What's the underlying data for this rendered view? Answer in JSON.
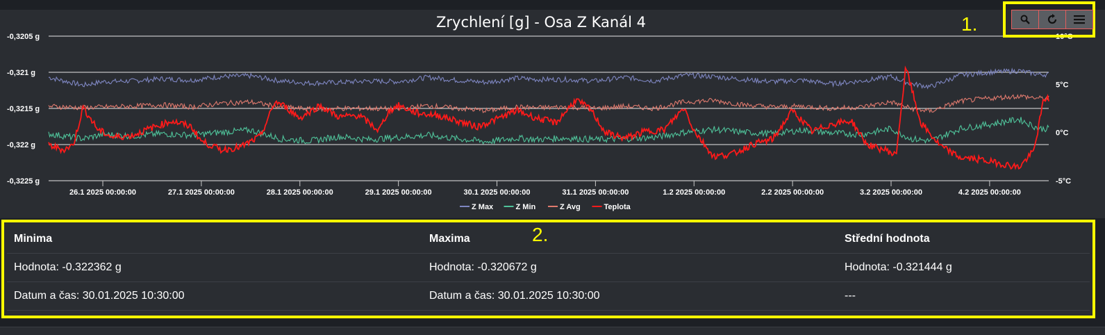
{
  "chart_data": {
    "type": "line",
    "title": "Zrychlení [g] - Osa Z Kanál 4",
    "y_left": {
      "min": -0.3225,
      "max": -0.3205,
      "ticks": [
        "-0,3205 g",
        "-0,321 g",
        "-0,3215 g",
        "-0,322 g",
        "-0,3225 g"
      ]
    },
    "y_right": {
      "min": -5,
      "max": 10,
      "ticks": [
        "10°C",
        "5°C",
        "0°C",
        "-5°C"
      ]
    },
    "x_ticks": [
      "26.1 2025 00:00:00",
      "27.1 2025 00:00:00",
      "28.1 2025 00:00:00",
      "29.1 2025 00:00:00",
      "30.1 2025 00:00:00",
      "31.1 2025 00:00:00",
      "1.2 2025 00:00:00",
      "2.2 2025 00:00:00",
      "3.2 2025 00:00:00",
      "4.2 2025 00:00:00"
    ],
    "x_start_day": 25.45,
    "x_end_day": 35.6,
    "grid": true,
    "legend_position": "bottom",
    "series": [
      {
        "name": "Z Max",
        "color": "#7e86c1",
        "axis": "left",
        "x": [
          25.45,
          25.8,
          26.0,
          26.3,
          26.6,
          26.9,
          27.2,
          27.5,
          27.8,
          28.1,
          28.4,
          28.7,
          29.0,
          29.3,
          29.6,
          29.9,
          30.2,
          30.4,
          30.7,
          31.0,
          31.3,
          31.6,
          31.9,
          32.2,
          32.5,
          32.8,
          33.1,
          33.4,
          33.7,
          34.0,
          34.2,
          34.4,
          34.7,
          35.0,
          35.3,
          35.5
        ],
        "values": [
          -0.32107,
          -0.32118,
          -0.32113,
          -0.32112,
          -0.32109,
          -0.32111,
          -0.32106,
          -0.32105,
          -0.32112,
          -0.32115,
          -0.32114,
          -0.32112,
          -0.32113,
          -0.32107,
          -0.32111,
          -0.32114,
          -0.32108,
          -0.3211,
          -0.3211,
          -0.32112,
          -0.32107,
          -0.32112,
          -0.32104,
          -0.32106,
          -0.3211,
          -0.32113,
          -0.32111,
          -0.32116,
          -0.32112,
          -0.32106,
          -0.32116,
          -0.3212,
          -0.32104,
          -0.321,
          -0.32098,
          -0.32103
        ]
      },
      {
        "name": "Z Min",
        "color": "#4fc39a",
        "axis": "left",
        "x": [
          25.45,
          25.8,
          26.0,
          26.3,
          26.6,
          26.9,
          27.2,
          27.5,
          27.8,
          28.1,
          28.4,
          28.7,
          29.0,
          29.3,
          29.6,
          29.9,
          30.2,
          30.4,
          30.7,
          31.0,
          31.3,
          31.6,
          31.9,
          32.2,
          32.5,
          32.8,
          33.1,
          33.4,
          33.7,
          34.0,
          34.2,
          34.4,
          34.7,
          35.0,
          35.3,
          35.5
        ],
        "values": [
          -0.32185,
          -0.32192,
          -0.32186,
          -0.32188,
          -0.32185,
          -0.32187,
          -0.32183,
          -0.3218,
          -0.32192,
          -0.32195,
          -0.32189,
          -0.32193,
          -0.3219,
          -0.32187,
          -0.32192,
          -0.32196,
          -0.32191,
          -0.32193,
          -0.32191,
          -0.32193,
          -0.32192,
          -0.3219,
          -0.32183,
          -0.32179,
          -0.32183,
          -0.32185,
          -0.3218,
          -0.32184,
          -0.32186,
          -0.32178,
          -0.32192,
          -0.32195,
          -0.32178,
          -0.32172,
          -0.32165,
          -0.32178
        ]
      },
      {
        "name": "Z Avg",
        "color": "#e07a6e",
        "axis": "left",
        "x": [
          25.45,
          25.8,
          26.0,
          26.3,
          26.6,
          26.9,
          27.2,
          27.5,
          27.8,
          28.1,
          28.4,
          28.7,
          29.0,
          29.3,
          29.6,
          29.9,
          30.2,
          30.4,
          30.7,
          31.0,
          31.3,
          31.6,
          31.9,
          32.2,
          32.5,
          32.8,
          33.1,
          33.4,
          33.7,
          34.0,
          34.2,
          34.4,
          34.7,
          35.0,
          35.3,
          35.5
        ],
        "values": [
          -0.32147,
          -0.32149,
          -0.32148,
          -0.32147,
          -0.32145,
          -0.32148,
          -0.32143,
          -0.32141,
          -0.32148,
          -0.32151,
          -0.3215,
          -0.3215,
          -0.32151,
          -0.32146,
          -0.3215,
          -0.32153,
          -0.32148,
          -0.32149,
          -0.32148,
          -0.3215,
          -0.32147,
          -0.3215,
          -0.32141,
          -0.32139,
          -0.32145,
          -0.32148,
          -0.32147,
          -0.3215,
          -0.32148,
          -0.32141,
          -0.3215,
          -0.32154,
          -0.3214,
          -0.32136,
          -0.32133,
          -0.32136
        ]
      },
      {
        "name": "Teplota",
        "color": "#ff1a1a",
        "axis": "right",
        "x": [
          25.45,
          25.6,
          25.7,
          25.8,
          25.95,
          26.1,
          26.3,
          26.5,
          26.7,
          26.9,
          27.0,
          27.2,
          27.4,
          27.6,
          27.75,
          27.85,
          28.0,
          28.2,
          28.4,
          28.6,
          28.8,
          28.9,
          29.0,
          29.2,
          29.4,
          29.6,
          29.8,
          30.0,
          30.2,
          30.4,
          30.6,
          30.8,
          30.95,
          31.1,
          31.3,
          31.5,
          31.7,
          31.9,
          32.0,
          32.2,
          32.4,
          32.6,
          32.8,
          33.0,
          33.2,
          33.4,
          33.6,
          33.75,
          33.85,
          33.95,
          34.05,
          34.15,
          34.3,
          34.5,
          34.7,
          34.9,
          35.1,
          35.3,
          35.45,
          35.55
        ],
        "values": [
          -1.3,
          -1.8,
          -1.3,
          2.6,
          0.3,
          -0.5,
          -0.3,
          0.5,
          1.2,
          0.6,
          -0.9,
          -1.8,
          -1.5,
          -0.4,
          3.2,
          2.7,
          1.5,
          2.8,
          1.6,
          1.8,
          0.2,
          2.2,
          2.8,
          2.0,
          1.8,
          1.2,
          0.6,
          1.4,
          2.3,
          1.5,
          1.0,
          3.4,
          2.4,
          0.0,
          -0.6,
          0.1,
          0.3,
          2.6,
          0.2,
          -2.5,
          -2.2,
          -1.2,
          -0.7,
          2.3,
          0.1,
          0.9,
          1.2,
          -1.2,
          -1.6,
          -1.8,
          -2.4,
          6.8,
          1.0,
          -1.4,
          -2.6,
          -2.8,
          -3.2,
          -3.6,
          -1.9,
          3.5
        ]
      }
    ]
  },
  "toolbar": {
    "annotation": "1.",
    "zoom_icon": "zoom-icon",
    "reset_icon": "reset-icon",
    "menu_icon": "menu-icon"
  },
  "stats": {
    "annotation": "2.",
    "headers": [
      "Minima",
      "Maxima",
      "Střední hodnota"
    ],
    "rows": [
      [
        "Hodnota: -0.322362 g",
        "Hodnota: -0.320672 g",
        "Hodnota: -0.321444 g"
      ],
      [
        "Datum a čas: 30.01.2025 10:30:00",
        "Datum a čas: 30.01.2025 10:30:00",
        "---"
      ]
    ]
  }
}
